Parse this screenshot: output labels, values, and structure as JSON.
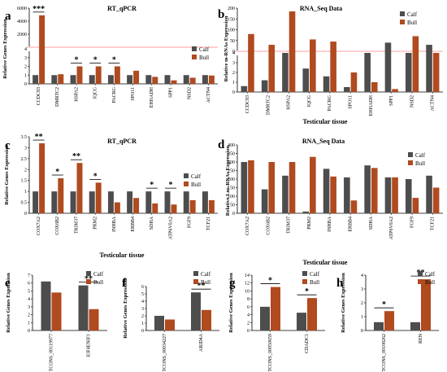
{
  "colors": {
    "calf": "#4d4d4d",
    "bull": "#b04a1f",
    "break": "#ff3b3b"
  },
  "chart_data": [
    {
      "panel": "a",
      "type": "bar",
      "title": "RT_qPCR",
      "ylabel": "Relative Genes Expression",
      "xlabel": "",
      "legend": [
        "Calf",
        "Bull"
      ],
      "legend_position": "top-right",
      "categories": [
        "CCDC83",
        "DMRTC2",
        "HSPA2",
        "IQCG",
        "PACRG",
        "SPO11",
        "EHHADH",
        "SPP1",
        "NSD2",
        "ACTN4"
      ],
      "series": [
        {
          "name": "Calf",
          "values": [
            1,
            1,
            1,
            1,
            1,
            1,
            1,
            1,
            1,
            1
          ]
        },
        {
          "name": "Bull",
          "values": [
            4900,
            1.1,
            2.0,
            2.0,
            2.0,
            1.5,
            0.8,
            0.4,
            0.7,
            0.95
          ]
        }
      ],
      "broken_axis": true,
      "lower_ticks": [
        "0",
        "1",
        "2",
        "3",
        "4"
      ],
      "upper_ticks": [
        "2000",
        "4000",
        "6000"
      ],
      "significance": [
        {
          "category": "CCDC83",
          "label": "***"
        },
        {
          "category": "HSPA2",
          "label": "*"
        },
        {
          "category": "IQCG",
          "label": "*"
        },
        {
          "category": "PACRG",
          "label": "*"
        }
      ]
    },
    {
      "panel": "b",
      "type": "bar",
      "title": "RNA_Seq Data",
      "ylabel": "Relative m-RNAs Expression",
      "xlabel": "Testicular tissue",
      "legend": [
        "Calf",
        "Bull"
      ],
      "legend_position": "top-right",
      "categories": [
        "CCDC83",
        "DMRTC2",
        "HSPA2",
        "IQCG",
        "PACRG",
        "SPO11",
        "EHHADH",
        "SPP1",
        "NSD2",
        "ACTN4"
      ],
      "series": [
        {
          "name": "Calf",
          "values": [
            0.6,
            1.2,
            4,
            2.4,
            1.6,
            0.5,
            4,
            40,
            4,
            30
          ]
        },
        {
          "name": "Bull",
          "values": [
            80,
            30,
            185,
            55,
            45,
            2.0,
            1.0,
            0.3,
            70,
            4
          ]
        }
      ],
      "broken_axis": true,
      "lower_ticks": [
        "0",
        "1",
        "2",
        "3",
        "4"
      ],
      "upper_ticks": [
        "0",
        "50",
        "100",
        "150",
        "200"
      ]
    },
    {
      "panel": "c",
      "type": "bar",
      "title": "RT_qPCR",
      "ylabel": "Relative Genes Expression",
      "xlabel": "Testicular tissue",
      "legend": [
        "Calf",
        "Bull"
      ],
      "legend_position": "right",
      "categories": [
        "COX7A2",
        "COX6B2",
        "TRIM37",
        "PRM2",
        "INHBA",
        "ERBB4",
        "SDHA",
        "ATP6V0A2",
        "FGF9",
        "TCF21"
      ],
      "series": [
        {
          "name": "Calf",
          "values": [
            1,
            1,
            1,
            1,
            1,
            1,
            1,
            1,
            1,
            1
          ]
        },
        {
          "name": "Bull",
          "values": [
            3.2,
            1.6,
            2.3,
            1.4,
            0.5,
            0.7,
            0.45,
            0.4,
            0.6,
            0.6
          ]
        }
      ],
      "yticks": [
        "0",
        "0.5",
        "1",
        "1.5",
        "2",
        "2.5",
        "3",
        "3.5"
      ],
      "ylim": [
        0,
        3.5
      ],
      "significance": [
        {
          "category": "COX7A2",
          "label": "**"
        },
        {
          "category": "COX6B2",
          "label": "*"
        },
        {
          "category": "TRIM37",
          "label": "**"
        },
        {
          "category": "PRM2",
          "label": "*"
        },
        {
          "category": "SDHA",
          "label": "*"
        },
        {
          "category": "ATP6V0A2",
          "label": "*"
        }
      ]
    },
    {
      "panel": "d",
      "type": "bar",
      "title": "RNA_Seq Data",
      "ylabel": "Relative Lnc-RNAs Expression",
      "xlabel": "Testicular tissue",
      "legend": [
        "Calf",
        "Bull"
      ],
      "legend_position": "top-right",
      "categories": [
        "COX7A2",
        "COX6B2",
        "TRIM37",
        "PRM2",
        "INHBA",
        "ERBB4",
        "SDHA",
        "ATP6V0A2",
        "FGF9",
        "TCF21"
      ],
      "series": [
        {
          "name": "Calf",
          "values": [
            300,
            140,
            220,
            10,
            260,
            210,
            280,
            210,
            200,
            220
          ]
        },
        {
          "name": "Bull",
          "values": [
            310,
            300,
            300,
            330,
            215,
            75,
            265,
            210,
            90,
            150
          ]
        }
      ],
      "yticks": [
        "0",
        "50",
        "100",
        "150",
        "200",
        "250",
        "300",
        "350",
        "400"
      ],
      "ylim": [
        0,
        400
      ]
    },
    {
      "panel": "e",
      "type": "bar",
      "ylabel": "Relative Genes Expression",
      "legend": [
        "Calf",
        "Bull"
      ],
      "legend_position": "top-right",
      "categories": [
        "TCONS_00119977",
        "EIF4ENIF1"
      ],
      "series": [
        {
          "name": "Calf",
          "values": [
            6.2,
            5.7
          ]
        },
        {
          "name": "Bull",
          "values": [
            4.8,
            2.7
          ]
        }
      ],
      "yticks": [
        "0",
        "1",
        "2",
        "3",
        "4",
        "5",
        "6",
        "7"
      ],
      "ylim": [
        0,
        7
      ],
      "significance": [
        {
          "category": "EIF4ENIF1",
          "label": "**"
        }
      ]
    },
    {
      "panel": "f",
      "type": "bar",
      "ylabel": "Relative Genes Expression",
      "legend": [
        "Calf",
        "Bull"
      ],
      "legend_position": "top-right",
      "categories": [
        "TCONS_00034227",
        "ARID4A"
      ],
      "series": [
        {
          "name": "Calf",
          "values": [
            2.0,
            5.2
          ]
        },
        {
          "name": "Bull",
          "values": [
            1.5,
            2.8
          ]
        }
      ],
      "yticks": [
        "0",
        "1",
        "2",
        "3",
        "4",
        "5",
        "6"
      ],
      "ylim": [
        0,
        6
      ],
      "significance": [
        {
          "category": "ARID4A",
          "label": "**"
        }
      ]
    },
    {
      "panel": "g",
      "type": "bar",
      "ylabel": "Relative Genes Expression",
      "legend": [
        "Calf",
        "Bull"
      ],
      "legend_position": "top-right",
      "categories": [
        "TCONS_00050659",
        "CDADC1"
      ],
      "series": [
        {
          "name": "Calf",
          "values": [
            6.0,
            4.5
          ]
        },
        {
          "name": "Bull",
          "values": [
            11.0,
            8.2
          ]
        }
      ],
      "yticks": [
        "0",
        "2",
        "4",
        "6",
        "8",
        "10",
        "12",
        "14"
      ],
      "ylim": [
        0,
        14
      ],
      "significance": [
        {
          "category": "TCONS_00050659",
          "label": "*"
        },
        {
          "category": "CDADC1",
          "label": "*"
        }
      ]
    },
    {
      "panel": "h",
      "type": "bar",
      "ylabel": "Relative Genes Expression",
      "legend": [
        "Calf",
        "Bull"
      ],
      "legend_position": "top-right",
      "categories": [
        "TCONS_00108262",
        "REN"
      ],
      "series": [
        {
          "name": "Calf",
          "values": [
            0.6,
            0.6
          ]
        },
        {
          "name": "Bull",
          "values": [
            1.4,
            3.7
          ]
        }
      ],
      "yticks": [
        "0",
        "1",
        "2",
        "3",
        "4"
      ],
      "ylim": [
        0,
        4
      ],
      "significance": [
        {
          "category": "TCONS_00108262",
          "label": "*"
        },
        {
          "category": "REN",
          "label": "**"
        }
      ]
    }
  ]
}
